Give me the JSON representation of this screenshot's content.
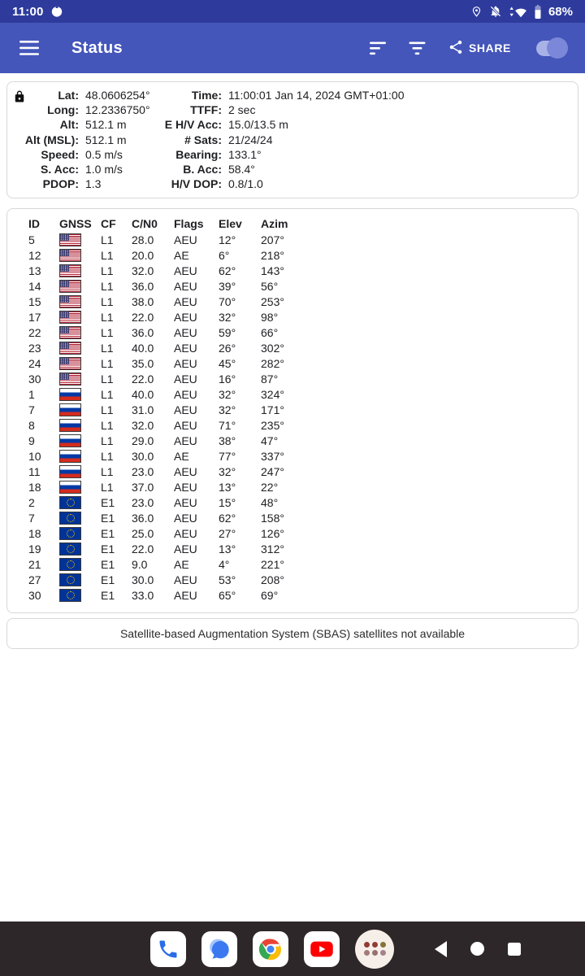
{
  "status_bar": {
    "time": "11:00",
    "battery_percent": "68%",
    "icons": [
      "notification-dot-icon",
      "location-icon",
      "notifications-off-icon",
      "network-activity-icon",
      "wifi-icon",
      "battery-icon"
    ]
  },
  "app_bar": {
    "title": "Status",
    "share_label": "SHARE",
    "icons": [
      "menu-icon",
      "sort-icon",
      "filter-icon",
      "share-icon"
    ],
    "toggle_on": true
  },
  "info": {
    "rows": [
      {
        "l_label": "Lat:",
        "l_value": "48.0606254°",
        "r_label": "Time:",
        "r_value": "11:00:01 Jan 14, 2024 GMT+01:00"
      },
      {
        "l_label": "Long:",
        "l_value": "12.2336750°",
        "r_label": "TTFF:",
        "r_value": "2 sec"
      },
      {
        "l_label": "Alt:",
        "l_value": "512.1 m",
        "r_label": "E H/V Acc:",
        "r_value": "15.0/13.5 m"
      },
      {
        "l_label": "Alt (MSL):",
        "l_value": "512.1 m",
        "r_label": "# Sats:",
        "r_value": "21/24/24"
      },
      {
        "l_label": "Speed:",
        "l_value": "0.5 m/s",
        "r_label": "Bearing:",
        "r_value": "133.1°"
      },
      {
        "l_label": "S. Acc:",
        "l_value": "1.0 m/s",
        "r_label": "B. Acc:",
        "r_value": "58.4°"
      },
      {
        "l_label": "PDOP:",
        "l_value": "1.3",
        "r_label": "H/V DOP:",
        "r_value": "0.8/1.0"
      }
    ]
  },
  "satellites": {
    "columns": [
      "ID",
      "GNSS",
      "CF",
      "C/N0",
      "Flags",
      "Elev",
      "Azim"
    ],
    "rows": [
      {
        "id": "5",
        "gnss": "us",
        "cf": "L1",
        "cn0": "28.0",
        "flags": "AEU",
        "elev": "12°",
        "azim": "207°"
      },
      {
        "id": "12",
        "gnss": "us",
        "cf": "L1",
        "cn0": "20.0",
        "flags": "AE",
        "elev": "6°",
        "azim": "218°"
      },
      {
        "id": "13",
        "gnss": "us",
        "cf": "L1",
        "cn0": "32.0",
        "flags": "AEU",
        "elev": "62°",
        "azim": "143°"
      },
      {
        "id": "14",
        "gnss": "us",
        "cf": "L1",
        "cn0": "36.0",
        "flags": "AEU",
        "elev": "39°",
        "azim": "56°"
      },
      {
        "id": "15",
        "gnss": "us",
        "cf": "L1",
        "cn0": "38.0",
        "flags": "AEU",
        "elev": "70°",
        "azim": "253°"
      },
      {
        "id": "17",
        "gnss": "us",
        "cf": "L1",
        "cn0": "22.0",
        "flags": "AEU",
        "elev": "32°",
        "azim": "98°"
      },
      {
        "id": "22",
        "gnss": "us",
        "cf": "L1",
        "cn0": "36.0",
        "flags": "AEU",
        "elev": "59°",
        "azim": "66°"
      },
      {
        "id": "23",
        "gnss": "us",
        "cf": "L1",
        "cn0": "40.0",
        "flags": "AEU",
        "elev": "26°",
        "azim": "302°"
      },
      {
        "id": "24",
        "gnss": "us",
        "cf": "L1",
        "cn0": "35.0",
        "flags": "AEU",
        "elev": "45°",
        "azim": "282°"
      },
      {
        "id": "30",
        "gnss": "us",
        "cf": "L1",
        "cn0": "22.0",
        "flags": "AEU",
        "elev": "16°",
        "azim": "87°"
      },
      {
        "id": "1",
        "gnss": "ru",
        "cf": "L1",
        "cn0": "40.0",
        "flags": "AEU",
        "elev": "32°",
        "azim": "324°"
      },
      {
        "id": "7",
        "gnss": "ru",
        "cf": "L1",
        "cn0": "31.0",
        "flags": "AEU",
        "elev": "32°",
        "azim": "171°"
      },
      {
        "id": "8",
        "gnss": "ru",
        "cf": "L1",
        "cn0": "32.0",
        "flags": "AEU",
        "elev": "71°",
        "azim": "235°"
      },
      {
        "id": "9",
        "gnss": "ru",
        "cf": "L1",
        "cn0": "29.0",
        "flags": "AEU",
        "elev": "38°",
        "azim": "47°"
      },
      {
        "id": "10",
        "gnss": "ru",
        "cf": "L1",
        "cn0": "30.0",
        "flags": "AE",
        "elev": "77°",
        "azim": "337°"
      },
      {
        "id": "11",
        "gnss": "ru",
        "cf": "L1",
        "cn0": "23.0",
        "flags": "AEU",
        "elev": "32°",
        "azim": "247°"
      },
      {
        "id": "18",
        "gnss": "ru",
        "cf": "L1",
        "cn0": "37.0",
        "flags": "AEU",
        "elev": "13°",
        "azim": "22°"
      },
      {
        "id": "2",
        "gnss": "eu",
        "cf": "E1",
        "cn0": "23.0",
        "flags": "AEU",
        "elev": "15°",
        "azim": "48°"
      },
      {
        "id": "7",
        "gnss": "eu",
        "cf": "E1",
        "cn0": "36.0",
        "flags": "AEU",
        "elev": "62°",
        "azim": "158°"
      },
      {
        "id": "18",
        "gnss": "eu",
        "cf": "E1",
        "cn0": "25.0",
        "flags": "AEU",
        "elev": "27°",
        "azim": "126°"
      },
      {
        "id": "19",
        "gnss": "eu",
        "cf": "E1",
        "cn0": "22.0",
        "flags": "AEU",
        "elev": "13°",
        "azim": "312°"
      },
      {
        "id": "21",
        "gnss": "eu",
        "cf": "E1",
        "cn0": "9.0",
        "flags": "AE",
        "elev": "4°",
        "azim": "221°"
      },
      {
        "id": "27",
        "gnss": "eu",
        "cf": "E1",
        "cn0": "30.0",
        "flags": "AEU",
        "elev": "53°",
        "azim": "208°"
      },
      {
        "id": "30",
        "gnss": "eu",
        "cf": "E1",
        "cn0": "33.0",
        "flags": "AEU",
        "elev": "65°",
        "azim": "69°"
      }
    ],
    "flag_legend": {
      "us": "usa-flag",
      "ru": "russia-flag",
      "eu": "eu-flag"
    }
  },
  "sbas": {
    "message": "Satellite-based Augmentation System (SBAS) satellites not available"
  },
  "nav_bar": {
    "apps": [
      "phone",
      "messages",
      "chrome",
      "youtube",
      "app-drawer"
    ],
    "system": [
      "back",
      "home",
      "recents"
    ]
  },
  "colors": {
    "status_bar": "#2e3b9d",
    "app_bar": "#4456ba",
    "nav_bar": "#2e2729",
    "toggle_track": "#a9b2e6",
    "toggle_thumb": "#7b87d8",
    "text": "#202124"
  }
}
